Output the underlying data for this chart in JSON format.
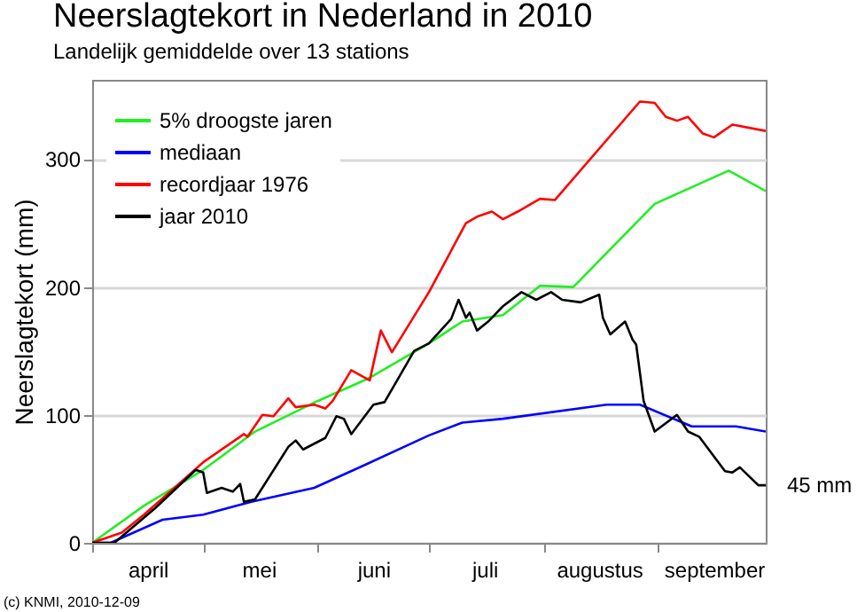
{
  "chart_data": {
    "type": "line",
    "title": "Neerslagtekort in Nederland in 2010",
    "subtitle": "Landelijk gemiddelde over 13 stations",
    "ylabel": "Neerslagtekort (mm)",
    "xlim": [
      "2010-04-01",
      "2010-09-30"
    ],
    "xticks": [
      {
        "value": "2010-04-01",
        "label": null
      },
      {
        "value": "2010-04-16",
        "label": "april"
      },
      {
        "value": "2010-05-01",
        "label": null
      },
      {
        "value": "2010-05-16",
        "label": "mei"
      },
      {
        "value": "2010-06-01",
        "label": null
      },
      {
        "value": "2010-06-16",
        "label": "juni"
      },
      {
        "value": "2010-07-01",
        "label": null
      },
      {
        "value": "2010-07-16",
        "label": "juli"
      },
      {
        "value": "2010-08-01",
        "label": null
      },
      {
        "value": "2010-08-16",
        "label": "augustus"
      },
      {
        "value": "2010-09-01",
        "label": null
      },
      {
        "value": "2010-09-16",
        "label": "september"
      }
    ],
    "ylim": [
      0,
      362
    ],
    "yticks": [
      0,
      100,
      200,
      300
    ],
    "grid": "y",
    "legend": "top left",
    "annotations": [
      "(c) KNMI, 2010-12-09",
      {
        "text": "45 mm",
        "x": "2010-09-30",
        "y": 45
      }
    ],
    "series": [
      {
        "name": "5% droogste jaren",
        "color": "#22ee22",
        "x": [
          "2010-04-01",
          "2010-04-15",
          "2010-05-01",
          "2010-05-15",
          "2010-06-01",
          "2010-06-15",
          "2010-07-01",
          "2010-07-10",
          "2010-07-21",
          "2010-07-31",
          "2010-08-09",
          "2010-08-31",
          "2010-09-20",
          "2010-09-30"
        ],
        "values": [
          0,
          29,
          57,
          87,
          111,
          129,
          156,
          173,
          178,
          201,
          200,
          265,
          291,
          275
        ]
      },
      {
        "name": "mediaan",
        "color": "#0000ff",
        "x": [
          "2010-04-01",
          "2010-04-06",
          "2010-04-20",
          "2010-05-01",
          "2010-05-14",
          "2010-05-31",
          "2010-06-13",
          "2010-07-01",
          "2010-07-10",
          "2010-07-21",
          "2010-08-18",
          "2010-08-27",
          "2010-09-10",
          "2010-09-22",
          "2010-09-30"
        ],
        "values": [
          0,
          0,
          18,
          22,
          32,
          43,
          60,
          84,
          94,
          97,
          108,
          108,
          91,
          91,
          87
        ]
      },
      {
        "name": "recordjaar 1976",
        "color": "#ff0000",
        "x": [
          "2010-04-01",
          "2010-04-09",
          "2010-04-15",
          "2010-04-24",
          "2010-05-01",
          "2010-05-12",
          "2010-05-13",
          "2010-05-17",
          "2010-05-20",
          "2010-05-24",
          "2010-05-26",
          "2010-05-31",
          "2010-06-03",
          "2010-06-05",
          "2010-06-10",
          "2010-06-15",
          "2010-06-18",
          "2010-06-21",
          "2010-07-01",
          "2010-07-11",
          "2010-07-14",
          "2010-07-18",
          "2010-07-21",
          "2010-07-25",
          "2010-07-31",
          "2010-08-04",
          "2010-08-27",
          "2010-08-31",
          "2010-09-03",
          "2010-09-06",
          "2010-09-09",
          "2010-09-13",
          "2010-09-16",
          "2010-09-21",
          "2010-09-30"
        ],
        "values": [
          0,
          8,
          22,
          45,
          63,
          85,
          83,
          100,
          99,
          113,
          106,
          108,
          105,
          111,
          135,
          127,
          166,
          149,
          196,
          250,
          255,
          259,
          253,
          259,
          269,
          268,
          345,
          344,
          333,
          330,
          333,
          320,
          317,
          327,
          322
        ]
      },
      {
        "name": "jaar 2010",
        "color": "#000000",
        "x": [
          "2010-04-01",
          "2010-04-07",
          "2010-04-18",
          "2010-04-29",
          "2010-05-01",
          "2010-05-02",
          "2010-05-06",
          "2010-05-09",
          "2010-05-11",
          "2010-05-12",
          "2010-05-15",
          "2010-05-24",
          "2010-05-26",
          "2010-05-28",
          "2010-06-03",
          "2010-06-06",
          "2010-06-08",
          "2010-06-10",
          "2010-06-16",
          "2010-06-19",
          "2010-06-27",
          "2010-07-01",
          "2010-07-07",
          "2010-07-09",
          "2010-07-11",
          "2010-07-12",
          "2010-07-14",
          "2010-07-17",
          "2010-07-21",
          "2010-07-26",
          "2010-07-30",
          "2010-08-03",
          "2010-08-06",
          "2010-08-11",
          "2010-08-16",
          "2010-08-17",
          "2010-08-19",
          "2010-08-23",
          "2010-08-25",
          "2010-08-26",
          "2010-08-28",
          "2010-08-31",
          "2010-09-06",
          "2010-09-09",
          "2010-09-12",
          "2010-09-19",
          "2010-09-21",
          "2010-09-23",
          "2010-09-28",
          "2010-09-30"
        ],
        "values": [
          0,
          0,
          27,
          57,
          55,
          39,
          43,
          40,
          46,
          32,
          34,
          75,
          80,
          73,
          82,
          99,
          97,
          85,
          108,
          110,
          150,
          156,
          175,
          190,
          176,
          180,
          166,
          173,
          185,
          196,
          190,
          196,
          190,
          188,
          194,
          176,
          163,
          173,
          159,
          155,
          111,
          87,
          100,
          87,
          83,
          56,
          55,
          59,
          45,
          45
        ]
      }
    ]
  }
}
